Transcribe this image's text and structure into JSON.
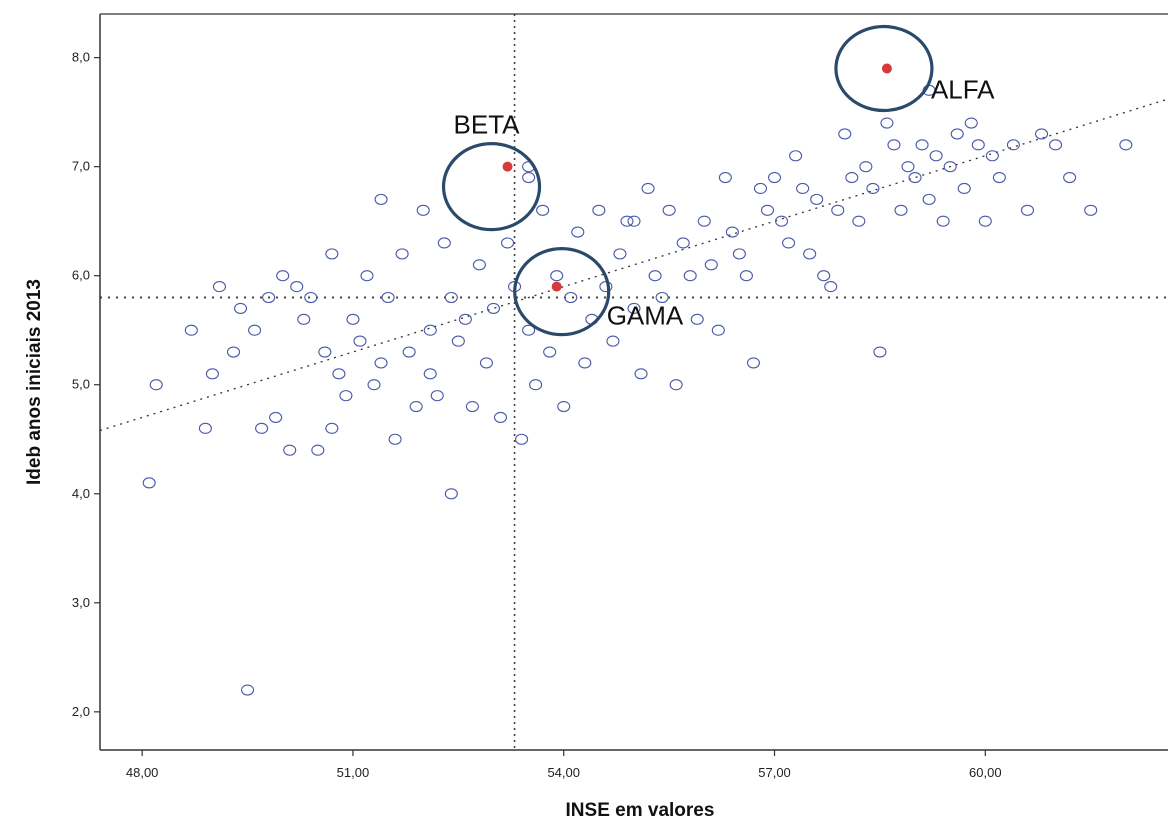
{
  "chart_data": {
    "type": "scatter",
    "xlabel": "INSE em valores",
    "ylabel": "Ideb anos iniciais 2013",
    "xlim": [
      47.4,
      62.6
    ],
    "ylim": [
      1.65,
      8.4
    ],
    "x_ticks": [
      {
        "value": 48,
        "label": "48,00"
      },
      {
        "value": 51,
        "label": "51,00"
      },
      {
        "value": 54,
        "label": "54,00"
      },
      {
        "value": 57,
        "label": "57,00"
      },
      {
        "value": 60,
        "label": "60,00"
      }
    ],
    "y_ticks": [
      {
        "value": 2,
        "label": "2,0"
      },
      {
        "value": 3,
        "label": "3,0"
      },
      {
        "value": 4,
        "label": "4,0"
      },
      {
        "value": 5,
        "label": "5,0"
      },
      {
        "value": 6,
        "label": "6,0"
      },
      {
        "value": 7,
        "label": "7,0"
      },
      {
        "value": 8,
        "label": "8,0"
      }
    ],
    "reference_lines": {
      "x_mean": 53.3,
      "y_mean": 5.8
    },
    "trend_line": {
      "x": [
        47.4,
        62.6
      ],
      "y": [
        4.58,
        7.62
      ]
    },
    "colors": {
      "points": "#4a5aa8",
      "highlight": "#d63a3a",
      "circle": "#2b4a6b",
      "axes": "#333333",
      "guide": "#444444"
    },
    "series": [
      {
        "points": [
          [
            48.1,
            4.1
          ],
          [
            48.2,
            5.0
          ],
          [
            48.7,
            5.5
          ],
          [
            48.9,
            4.6
          ],
          [
            49.0,
            5.1
          ],
          [
            49.1,
            5.9
          ],
          [
            49.3,
            5.3
          ],
          [
            49.4,
            5.7
          ],
          [
            49.5,
            2.2
          ],
          [
            49.6,
            5.5
          ],
          [
            49.7,
            4.6
          ],
          [
            49.8,
            5.8
          ],
          [
            49.9,
            4.7
          ],
          [
            50.0,
            6.0
          ],
          [
            50.1,
            4.4
          ],
          [
            50.2,
            5.9
          ],
          [
            50.3,
            5.6
          ],
          [
            50.4,
            5.8
          ],
          [
            50.5,
            4.4
          ],
          [
            50.6,
            5.3
          ],
          [
            50.7,
            6.2
          ],
          [
            50.7,
            4.6
          ],
          [
            50.8,
            5.1
          ],
          [
            50.9,
            4.9
          ],
          [
            51.0,
            5.6
          ],
          [
            51.1,
            5.4
          ],
          [
            51.2,
            6.0
          ],
          [
            51.3,
            5.0
          ],
          [
            51.4,
            6.7
          ],
          [
            51.4,
            5.2
          ],
          [
            51.5,
            5.8
          ],
          [
            51.6,
            4.5
          ],
          [
            51.7,
            6.2
          ],
          [
            51.8,
            5.3
          ],
          [
            51.9,
            4.8
          ],
          [
            52.0,
            6.6
          ],
          [
            52.1,
            5.5
          ],
          [
            52.1,
            5.1
          ],
          [
            52.2,
            4.9
          ],
          [
            52.3,
            6.3
          ],
          [
            52.4,
            5.8
          ],
          [
            52.4,
            4.0
          ],
          [
            52.5,
            5.4
          ],
          [
            52.6,
            5.6
          ],
          [
            52.7,
            4.8
          ],
          [
            52.8,
            6.1
          ],
          [
            52.9,
            5.2
          ],
          [
            53.0,
            5.7
          ],
          [
            53.1,
            4.7
          ],
          [
            53.2,
            6.3
          ],
          [
            53.3,
            5.9
          ],
          [
            53.4,
            4.5
          ],
          [
            53.5,
            6.9
          ],
          [
            53.5,
            5.5
          ],
          [
            53.6,
            5.0
          ],
          [
            53.7,
            6.6
          ],
          [
            53.8,
            5.3
          ],
          [
            53.9,
            6.0
          ],
          [
            54.0,
            4.8
          ],
          [
            54.1,
            5.8
          ],
          [
            54.2,
            6.4
          ],
          [
            54.3,
            5.2
          ],
          [
            54.4,
            5.6
          ],
          [
            54.5,
            6.6
          ],
          [
            54.6,
            5.9
          ],
          [
            54.7,
            5.4
          ],
          [
            54.8,
            6.2
          ],
          [
            54.9,
            6.5
          ],
          [
            55.0,
            5.7
          ],
          [
            55.0,
            6.5
          ],
          [
            55.1,
            5.1
          ],
          [
            55.2,
            6.8
          ],
          [
            55.3,
            6.0
          ],
          [
            55.4,
            5.8
          ],
          [
            55.5,
            6.6
          ],
          [
            55.6,
            5.0
          ],
          [
            55.7,
            6.3
          ],
          [
            55.8,
            6.0
          ],
          [
            55.9,
            5.6
          ],
          [
            56.0,
            6.5
          ],
          [
            56.1,
            6.1
          ],
          [
            56.2,
            5.5
          ],
          [
            56.3,
            6.9
          ],
          [
            56.4,
            6.4
          ],
          [
            56.5,
            6.2
          ],
          [
            56.6,
            6.0
          ],
          [
            56.7,
            5.2
          ],
          [
            56.8,
            6.8
          ],
          [
            56.9,
            6.6
          ],
          [
            57.0,
            6.9
          ],
          [
            57.1,
            6.5
          ],
          [
            57.2,
            6.3
          ],
          [
            57.3,
            7.1
          ],
          [
            57.4,
            6.8
          ],
          [
            57.5,
            6.2
          ],
          [
            57.6,
            6.7
          ],
          [
            57.7,
            6.0
          ],
          [
            57.8,
            5.9
          ],
          [
            57.9,
            6.6
          ],
          [
            58.0,
            7.3
          ],
          [
            58.1,
            6.9
          ],
          [
            58.2,
            6.5
          ],
          [
            58.3,
            7.0
          ],
          [
            58.4,
            6.8
          ],
          [
            58.5,
            5.3
          ],
          [
            58.6,
            7.4
          ],
          [
            58.7,
            7.2
          ],
          [
            58.8,
            6.6
          ],
          [
            58.9,
            7.0
          ],
          [
            59.0,
            6.9
          ],
          [
            59.1,
            7.2
          ],
          [
            59.2,
            6.7
          ],
          [
            59.3,
            7.1
          ],
          [
            59.4,
            6.5
          ],
          [
            59.5,
            7.0
          ],
          [
            59.6,
            7.3
          ],
          [
            59.7,
            6.8
          ],
          [
            59.8,
            7.4
          ],
          [
            59.9,
            7.2
          ],
          [
            60.0,
            6.5
          ],
          [
            60.1,
            7.1
          ],
          [
            60.2,
            6.9
          ],
          [
            60.4,
            7.2
          ],
          [
            60.6,
            6.6
          ],
          [
            60.8,
            7.3
          ],
          [
            61.0,
            7.2
          ],
          [
            61.2,
            6.9
          ],
          [
            61.5,
            6.6
          ],
          [
            62.0,
            7.2
          ],
          [
            59.2,
            7.7
          ],
          [
            53.5,
            7.0
          ]
        ]
      }
    ],
    "highlighted_points": [
      {
        "label": "ALFA",
        "x": 58.6,
        "y": 7.9
      },
      {
        "label": "BETA",
        "x": 53.2,
        "y": 7.0
      },
      {
        "label": "GAMA",
        "x": 53.9,
        "y": 5.9
      }
    ]
  }
}
